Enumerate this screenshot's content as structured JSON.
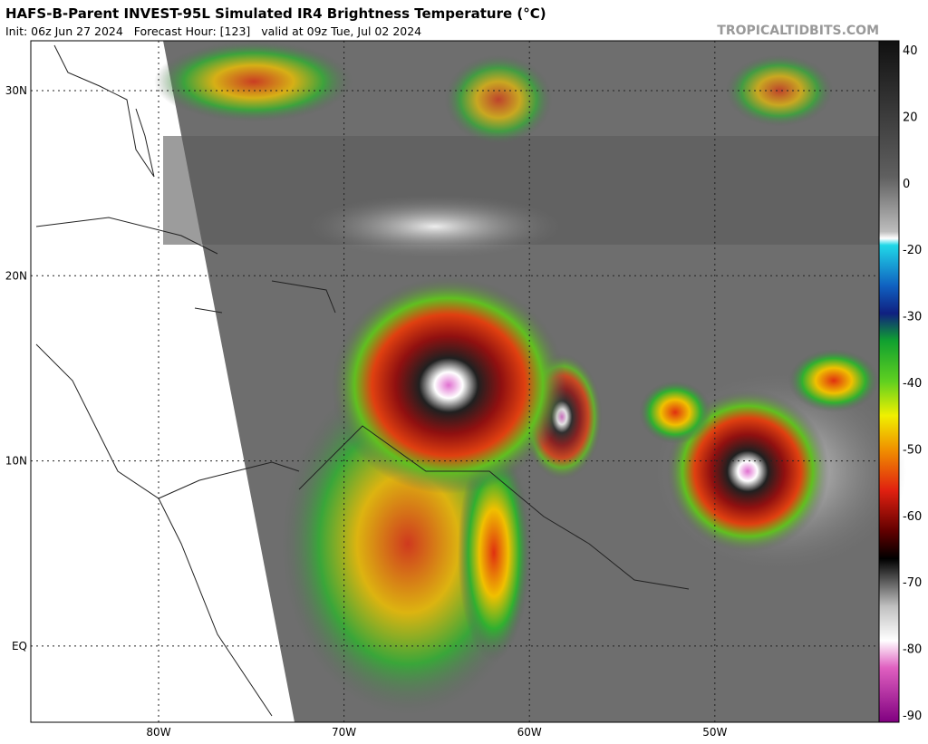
{
  "header": {
    "title": "HAFS-B-Parent INVEST-95L Simulated IR4 Brightness Temperature (°C)",
    "subtitle": "Init: 06z Jun 27 2024   Forecast Hour: [123]   valid at 09z Tue, Jul 02 2024",
    "source": "TROPICALTIDBITS.COM"
  },
  "map": {
    "lat_labels": [
      "30N",
      "20N",
      "10N",
      "EQ"
    ],
    "lon_labels": [
      "80W",
      "70W",
      "60W",
      "50W"
    ]
  },
  "colorbar": {
    "labels": [
      40,
      20,
      0,
      -20,
      -30,
      -40,
      -50,
      -60,
      -70,
      -80,
      -90
    ]
  }
}
